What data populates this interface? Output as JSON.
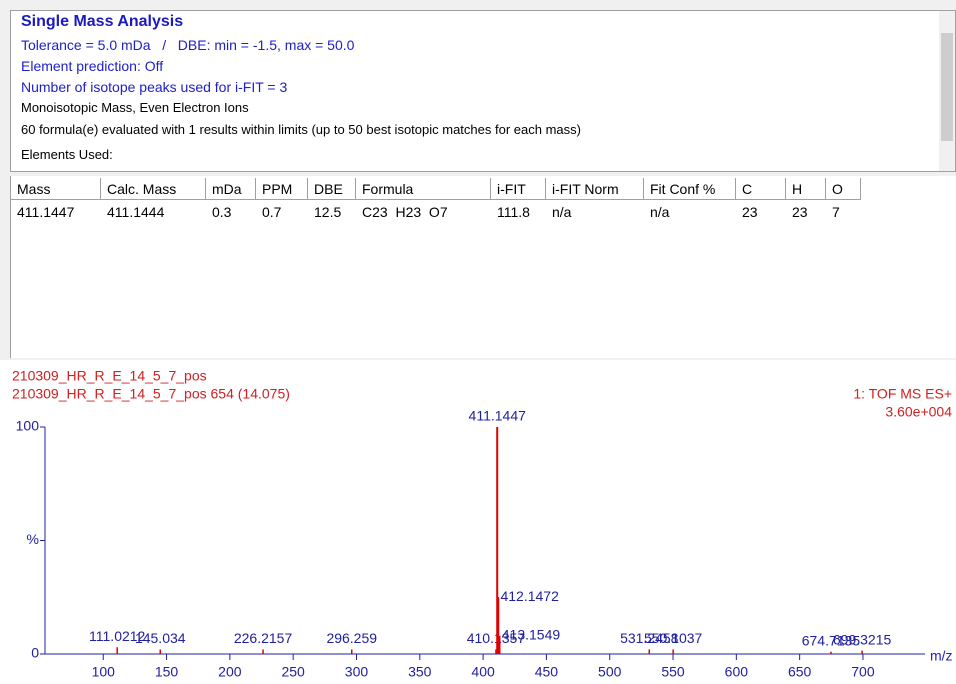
{
  "header": {
    "title": "Single Mass Analysis",
    "lines": [
      "Tolerance = 5.0 mDa   /   DBE: min = -1.5, max = 50.0",
      "Element prediction: Off",
      "Number of isotope peaks used for i-FIT = 3",
      "Monoisotopic Mass, Even Electron Ions",
      "60 formula(e) evaluated with 1 results within limits (up to 50 best isotopic matches for each mass)",
      "Elements Used:"
    ]
  },
  "table": {
    "columns": [
      "Mass",
      "Calc. Mass",
      "mDa",
      "PPM",
      "DBE",
      "Formula",
      "i-FIT",
      "i-FIT Norm",
      "Fit Conf %",
      "C",
      "H",
      "O"
    ],
    "rows": [
      [
        "411.1447",
        "411.1444",
        "0.3",
        "0.7",
        "12.5",
        "C23  H23  O7",
        "111.8",
        "n/a",
        "n/a",
        "23",
        "23",
        "7"
      ]
    ]
  },
  "chart_data": {
    "type": "bar",
    "sample": "210309_HR_R_E_14_5_7_pos",
    "scan": "210309_HR_R_E_14_5_7_pos 654 (14.075)",
    "function": "1: TOF MS ES+",
    "intensity": "3.60e+004",
    "xlabel": "m/z",
    "color": "#e00000",
    "x": [
      111.0212,
      145.034,
      226.2157,
      296.259,
      410.1357,
      411.1447,
      412.1472,
      413.1549,
      531.2458,
      550.1037,
      674.7135,
      699.3215
    ],
    "values": [
      3,
      2,
      2,
      2,
      2,
      100,
      25,
      8,
      2,
      2,
      1,
      1.5
    ],
    "xlim": [
      54,
      749
    ],
    "xticks": [
      100,
      150,
      200,
      250,
      300,
      350,
      400,
      450,
      500,
      550,
      600,
      650,
      700
    ],
    "ylim": [
      0,
      100
    ],
    "yticks": [
      0,
      {
        "value": 50,
        "label": "%"
      },
      100
    ]
  }
}
